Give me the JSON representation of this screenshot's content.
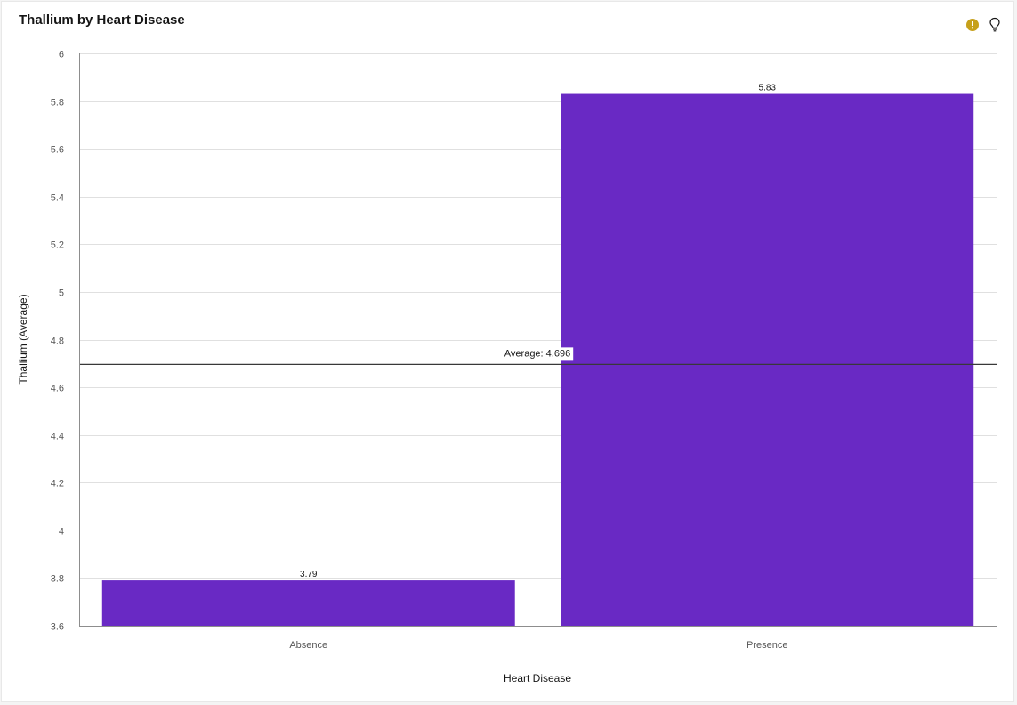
{
  "chart_data": {
    "type": "bar",
    "title": "Thallium by Heart Disease",
    "xlabel": "Heart Disease",
    "ylabel": "Thallium (Average)",
    "categories": [
      "Absence",
      "Presence"
    ],
    "values": [
      3.79,
      5.83
    ],
    "value_labels": [
      "3.79",
      "5.83"
    ],
    "ylim": [
      3.6,
      6
    ],
    "yticks": [
      3.6,
      3.8,
      4,
      4.2,
      4.4,
      4.6,
      4.8,
      5,
      5.2,
      5.4,
      5.6,
      5.8,
      6
    ],
    "ytick_labels": [
      "3.6",
      "3.8",
      "4",
      "4.2",
      "4.4",
      "4.6",
      "4.8",
      "5",
      "5.2",
      "5.4",
      "5.6",
      "5.8",
      "6"
    ],
    "reference_line": {
      "value": 4.696,
      "label": "Average: 4.696"
    },
    "grid": true,
    "legend": "none",
    "colors": {
      "bar": "#6929c4",
      "grid": "#e0e0e0",
      "axis": "#8d8d8d",
      "reference_line": "#393939"
    }
  },
  "toolbar": {
    "warning_icon": "warning-icon",
    "insight_icon": "lightbulb-icon",
    "warning_color": "#c6a01a"
  }
}
